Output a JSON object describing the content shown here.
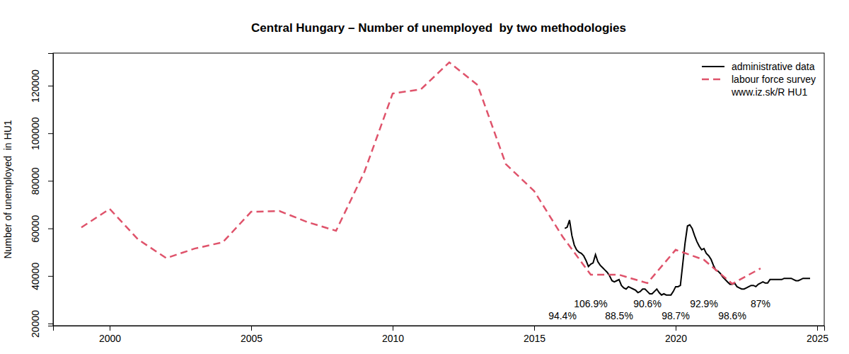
{
  "chart_data": {
    "type": "line",
    "title": "Central Hungary – Number of unemployed  by two methodologies",
    "y_label": "Number of unemployed  in HU1",
    "source": "www.iz.sk/R HU1",
    "legend": "top-right",
    "grid": false,
    "xlim": [
      1998.0,
      2025.25
    ],
    "xticks": [
      2000,
      2005,
      2010,
      2015,
      2020,
      2025
    ],
    "ylim": [
      19100,
      133700
    ],
    "yticks": [
      20000,
      40000,
      60000,
      80000,
      100000,
      120000
    ],
    "series": [
      {
        "name": "administrative data",
        "color": "#000000",
        "line_style": "solid",
        "x": [
          2016.083,
          2016.167,
          2016.25,
          2016.333,
          2016.417,
          2016.5,
          2016.583,
          2016.667,
          2016.75,
          2016.833,
          2016.917,
          2017.0,
          2017.083,
          2017.167,
          2017.25,
          2017.333,
          2017.417,
          2017.5,
          2017.583,
          2017.667,
          2017.75,
          2017.833,
          2017.917,
          2018.0,
          2018.083,
          2018.167,
          2018.25,
          2018.333,
          2018.417,
          2018.5,
          2018.583,
          2018.667,
          2018.75,
          2018.833,
          2018.917,
          2019.0,
          2019.083,
          2019.167,
          2019.25,
          2019.333,
          2019.417,
          2019.5,
          2019.583,
          2019.667,
          2019.75,
          2019.833,
          2019.917,
          2020.0,
          2020.083,
          2020.167,
          2020.25,
          2020.333,
          2020.417,
          2020.5,
          2020.583,
          2020.667,
          2020.75,
          2020.833,
          2020.917,
          2021.0,
          2021.083,
          2021.167,
          2021.25,
          2021.333,
          2021.417,
          2021.5,
          2021.583,
          2021.667,
          2021.75,
          2021.833,
          2021.917,
          2022.0,
          2022.083,
          2022.167,
          2022.25,
          2022.333,
          2022.417,
          2022.5,
          2022.583,
          2022.667,
          2022.75,
          2022.833,
          2022.917,
          2023.0,
          2023.083,
          2023.167,
          2023.25,
          2023.333,
          2023.417,
          2023.5,
          2023.583,
          2023.667,
          2023.75,
          2023.833,
          2023.917,
          2024.0,
          2024.083,
          2024.167,
          2024.25,
          2024.333,
          2024.417,
          2024.5,
          2024.583,
          2024.667,
          2024.75
        ],
        "values": [
          60000,
          60500,
          63500,
          57000,
          53000,
          51000,
          50000,
          49500,
          48500,
          46500,
          44000,
          45000,
          45500,
          49000,
          46000,
          44500,
          43500,
          42500,
          41500,
          40000,
          38000,
          37500,
          38000,
          38500,
          36000,
          35000,
          34500,
          35500,
          35000,
          34500,
          34000,
          33000,
          33500,
          34500,
          34500,
          33500,
          32500,
          32500,
          33500,
          34500,
          33000,
          32000,
          32500,
          32000,
          32000,
          32000,
          33500,
          35500,
          35500,
          36000,
          45000,
          54000,
          61000,
          61500,
          60000,
          57000,
          54500,
          52500,
          51000,
          51500,
          49500,
          48500,
          47000,
          44500,
          42500,
          42000,
          41000,
          39500,
          38500,
          37500,
          36500,
          36500,
          37000,
          35500,
          35000,
          34500,
          34500,
          35000,
          35500,
          36000,
          36000,
          35500,
          36500,
          37000,
          37500,
          37000,
          37000,
          38500,
          38500,
          38500,
          38500,
          38500,
          38500,
          39000,
          39000,
          39000,
          39000,
          38500,
          38000,
          38000,
          38500,
          39000,
          39000,
          39000,
          39000
        ]
      },
      {
        "name": "labour force survey",
        "color": "#df536b",
        "line_style": "dashed",
        "x": [
          1999,
          2000,
          2001,
          2002,
          2003,
          2004,
          2005,
          2006,
          2007,
          2008,
          2009,
          2010,
          2011,
          2012,
          2013,
          2014,
          2015,
          2016,
          2017,
          2018,
          2019,
          2020,
          2021,
          2022,
          2023
        ],
        "values": [
          60400,
          68200,
          55400,
          47500,
          51500,
          54200,
          67000,
          67300,
          62600,
          59000,
          83700,
          116700,
          118500,
          129800,
          120300,
          87000,
          75700,
          56600,
          40500,
          40500,
          37000,
          51000,
          46800,
          36700,
          43200
        ]
      }
    ],
    "annotations": [
      {
        "text": "94.4%",
        "x": 2016
      },
      {
        "text": "106.9%",
        "x": 2017
      },
      {
        "text": "88.5%",
        "x": 2018
      },
      {
        "text": "90.6%",
        "x": 2019
      },
      {
        "text": "98.7%",
        "x": 2020
      },
      {
        "text": "92.9%",
        "x": 2021
      },
      {
        "text": "98.6%",
        "x": 2022
      },
      {
        "text": "87%",
        "x": 2023
      }
    ]
  }
}
